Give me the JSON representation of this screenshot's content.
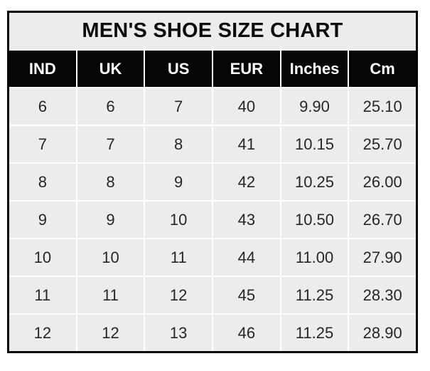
{
  "page": {
    "background": "#ffffff"
  },
  "chart_data": {
    "type": "table",
    "title": "MEN'S SHOE SIZE CHART",
    "columns": [
      "IND",
      "UK",
      "US",
      "EUR",
      "Inches",
      "Cm"
    ],
    "rows": [
      [
        "6",
        "6",
        "7",
        "40",
        "9.90",
        "25.10"
      ],
      [
        "7",
        "7",
        "8",
        "41",
        "10.15",
        "25.70"
      ],
      [
        "8",
        "8",
        "9",
        "42",
        "10.25",
        "26.00"
      ],
      [
        "9",
        "9",
        "10",
        "43",
        "10.50",
        "26.70"
      ],
      [
        "10",
        "10",
        "11",
        "44",
        "11.00",
        "27.90"
      ],
      [
        "11",
        "11",
        "12",
        "45",
        "11.25",
        "28.30"
      ],
      [
        "12",
        "12",
        "13",
        "46",
        "11.25",
        "28.90"
      ]
    ],
    "colors": {
      "header_bg": "#060606",
      "header_text": "#ffffff",
      "title_bg": "#ececea",
      "cell_bg": "#ececea",
      "cell_text": "#262626",
      "border": "#050505",
      "separator": "#ffffff"
    },
    "layout": {
      "grid": "on",
      "legend_position": "none"
    }
  }
}
